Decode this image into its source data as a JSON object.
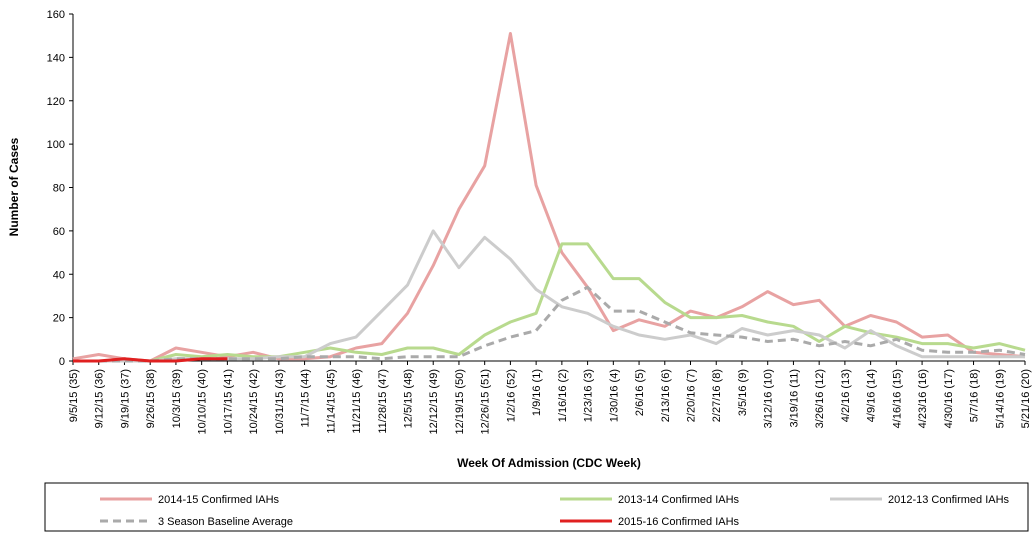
{
  "chart_data": {
    "type": "line",
    "x_label": "Week Of Admission  (CDC Week)",
    "y_label": "Number of Cases",
    "categories": [
      "9/5/15 (35)",
      "9/12/15 (36)",
      "9/19/15 (37)",
      "9/26/15 (38)",
      "10/3/15 (39)",
      "10/10/15 (40)",
      "10/17/15 (41)",
      "10/24/15 (42)",
      "10/31/15 (43)",
      "11/7/15 (44)",
      "11/14/15 (45)",
      "11/21/15 (46)",
      "11/28/15 (47)",
      "12/5/15 (48)",
      "12/12/15 (49)",
      "12/19/15 (50)",
      "12/26/15 (51)",
      "1/2/16 (52)",
      "1/9/16 (1)",
      "1/16/16 (2)",
      "1/23/16 (3)",
      "1/30/16 (4)",
      "2/6/16 (5)",
      "2/13/16 (6)",
      "2/20/16 (7)",
      "2/27/16 (8)",
      "3/5/16 (9)",
      "3/12/16 (10)",
      "3/19/16 (11)",
      "3/26/16 (12)",
      "4/2/16 (13)",
      "4/9/16 (14)",
      "4/16/16 (15)",
      "4/23/16 (16)",
      "4/30/16 (17)",
      "5/7/16 (18)",
      "5/14/16 (19)",
      "5/21/16 (20)"
    ],
    "series": [
      {
        "name": "2014-15 Confirmed IAHs",
        "color": "#e8a2a2",
        "values": [
          1,
          3,
          1,
          0,
          6,
          4,
          2,
          4,
          1,
          1,
          2,
          6,
          8,
          22,
          44,
          70,
          90,
          151,
          81,
          50,
          34,
          14,
          19,
          16,
          23,
          20,
          25,
          32,
          26,
          28,
          16,
          21,
          18,
          11,
          12,
          4,
          3,
          2
        ]
      },
      {
        "name": "2013-14 Confirmed IAHs",
        "color": "#b8da8e",
        "values": [
          0,
          0,
          0,
          0,
          3,
          2,
          3,
          2,
          2,
          4,
          6,
          4,
          3,
          6,
          6,
          3,
          12,
          18,
          22,
          54,
          54,
          38,
          38,
          27,
          20,
          20,
          21,
          18,
          16,
          9,
          16,
          13,
          11,
          8,
          8,
          6,
          8,
          5
        ]
      },
      {
        "name": "2012-13 Confirmed IAHs",
        "color": "#cccccc",
        "values": [
          0,
          0,
          0,
          0,
          1,
          1,
          1,
          1,
          2,
          2,
          8,
          11,
          23,
          35,
          60,
          43,
          57,
          47,
          33,
          25,
          22,
          16,
          12,
          10,
          12,
          8,
          15,
          12,
          14,
          12,
          6,
          14,
          7,
          2,
          2,
          2,
          2,
          2
        ]
      },
      {
        "name": "3 Season Baseline Average",
        "color": "#aaaaaa",
        "dashed": true,
        "values": [
          0,
          0,
          0,
          0,
          1,
          1,
          1,
          1,
          1,
          2,
          2,
          2,
          1,
          2,
          2,
          2,
          7,
          11,
          14,
          28,
          34,
          23,
          23,
          18,
          13,
          12,
          11,
          9,
          10,
          7,
          9,
          7,
          10,
          5,
          4,
          4,
          5,
          3
        ]
      },
      {
        "name": "2015-16 Confirmed IAHs",
        "color": "#e02020",
        "values": [
          0,
          0,
          1,
          0,
          0,
          1,
          1,
          null,
          null,
          null,
          null,
          null,
          null,
          null,
          null,
          null,
          null,
          null,
          null,
          null,
          null,
          null,
          null,
          null,
          null,
          null,
          null,
          null,
          null,
          null,
          null,
          null,
          null,
          null,
          null,
          null,
          null,
          null
        ]
      }
    ],
    "ylim": [
      0,
      160
    ],
    "yticks": [
      0,
      20,
      40,
      60,
      80,
      100,
      120,
      140,
      160
    ],
    "grid": false,
    "legend": "bottom"
  }
}
